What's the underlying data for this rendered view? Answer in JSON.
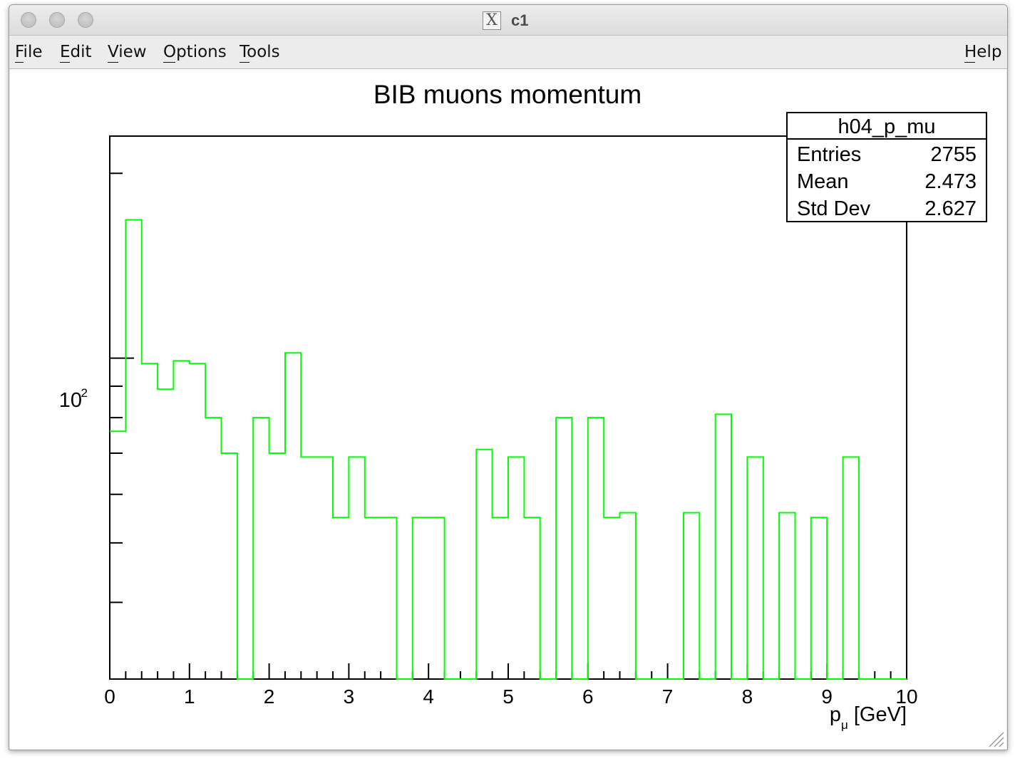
{
  "window": {
    "title": "c1",
    "app_icon": "x11-icon"
  },
  "menu": {
    "items": [
      "File",
      "Edit",
      "View",
      "Options",
      "Tools"
    ],
    "help": "Help"
  },
  "chart_data": {
    "type": "histogram",
    "title": "BIB muons momentum",
    "xlabel_main": "p",
    "xlabel_sub": "μ",
    "xlabel_unit": " [GeV]",
    "ylabel": "",
    "xlim": [
      0,
      10
    ],
    "ylim": [
      30,
      230
    ],
    "log_y": true,
    "grid": false,
    "line_color": "#00ff00",
    "x_ticks": [
      "0",
      "1",
      "2",
      "3",
      "4",
      "5",
      "6",
      "7",
      "8",
      "9",
      "10"
    ],
    "y_tick_label_base": "10",
    "y_tick_label_exp": "2",
    "bin_width": 0.2,
    "bin_edges_start": 0.0,
    "values": [
      76,
      168,
      98,
      89,
      99,
      98,
      80,
      70,
      0,
      80,
      70,
      102,
      69,
      69,
      55,
      69,
      55,
      55,
      0,
      55,
      55,
      0,
      0,
      71,
      55,
      69,
      55,
      0,
      80,
      0,
      80,
      55,
      56,
      0,
      0,
      0,
      56,
      0,
      81,
      0,
      69,
      0,
      56,
      0,
      55,
      0,
      69,
      0,
      0,
      0
    ],
    "stats_box": {
      "name": "h04_p_mu",
      "rows": [
        {
          "label": "Entries",
          "value": "2755"
        },
        {
          "label": "Mean",
          "value": "2.473"
        },
        {
          "label": "Std Dev",
          "value": "2.627"
        }
      ]
    }
  }
}
